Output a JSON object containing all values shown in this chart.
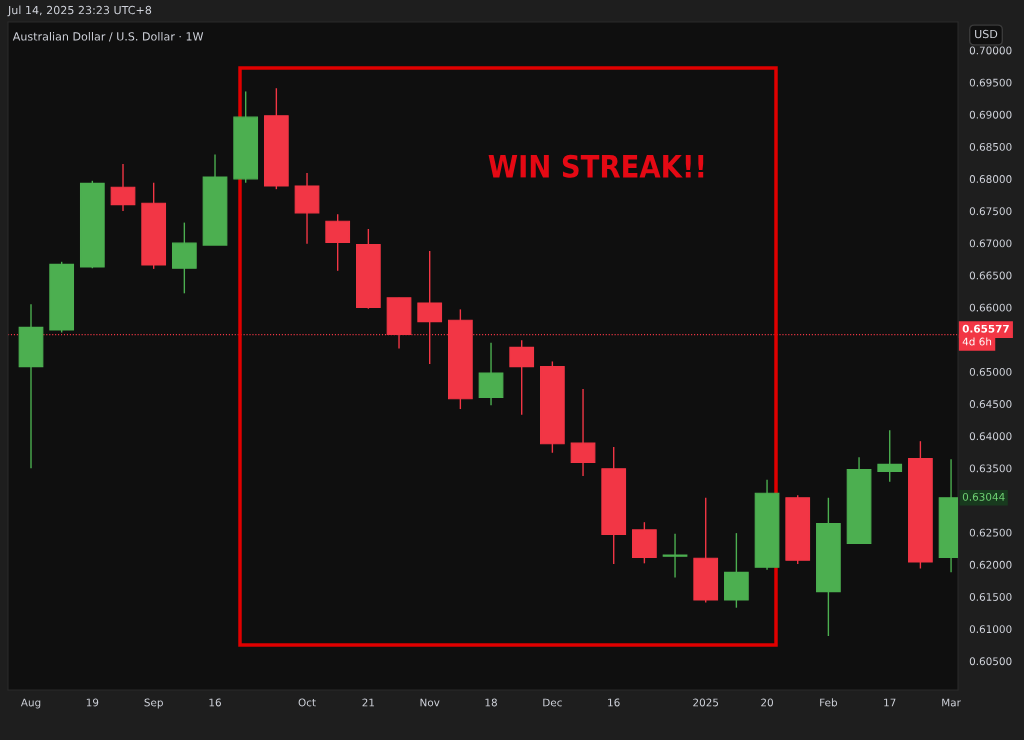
{
  "chart_data": {
    "type": "candlestick",
    "title": "Australian Dollar / U.S. Dollar · 1W",
    "ylabel": "USD",
    "x": [
      "2024-08-05",
      "2024-08-12",
      "2024-08-19",
      "2024-08-26",
      "2024-09-02",
      "2024-09-09",
      "2024-09-16",
      "2024-09-23",
      "2024-09-30",
      "2024-10-07",
      "2024-10-14",
      "2024-10-21",
      "2024-10-28",
      "2024-11-04",
      "2024-11-11",
      "2024-11-18",
      "2024-11-25",
      "2024-12-02",
      "2024-12-09",
      "2024-12-16",
      "2024-12-23",
      "2024-12-30",
      "2025-01-06",
      "2025-01-13",
      "2025-01-20",
      "2025-01-27",
      "2025-02-03",
      "2025-02-10",
      "2025-02-17",
      "2025-02-24",
      "2025-03-03"
    ],
    "ohlc": [
      [
        0.6508,
        0.6605,
        0.635,
        0.6569
      ],
      [
        0.6565,
        0.6671,
        0.6561,
        0.6667
      ],
      [
        0.6663,
        0.6797,
        0.6661,
        0.6793
      ],
      [
        0.6787,
        0.6823,
        0.675,
        0.676
      ],
      [
        0.6762,
        0.6794,
        0.666,
        0.6666
      ],
      [
        0.6661,
        0.6732,
        0.6622,
        0.67
      ],
      [
        0.6697,
        0.6838,
        0.6697,
        0.6803
      ],
      [
        0.68,
        0.6936,
        0.6794,
        0.6896
      ],
      [
        0.6898,
        0.6941,
        0.6784,
        0.6789
      ],
      [
        0.6789,
        0.6809,
        0.6699,
        0.6747
      ],
      [
        0.6734,
        0.6745,
        0.6657,
        0.6701
      ],
      [
        0.6698,
        0.6722,
        0.6598,
        0.66
      ],
      [
        0.6615,
        0.6615,
        0.6536,
        0.6558
      ],
      [
        0.6607,
        0.6688,
        0.6512,
        0.6578
      ],
      [
        0.658,
        0.6597,
        0.6442,
        0.6458
      ],
      [
        0.646,
        0.6545,
        0.6448,
        0.6498
      ],
      [
        0.6538,
        0.6549,
        0.6433,
        0.6508
      ],
      [
        0.6508,
        0.6516,
        0.6374,
        0.6388
      ],
      [
        0.6389,
        0.6473,
        0.6338,
        0.6359
      ],
      [
        0.6349,
        0.6383,
        0.6201,
        0.6247
      ],
      [
        0.6254,
        0.6266,
        0.6202,
        0.6211
      ],
      [
        0.6213,
        0.6248,
        0.618,
        0.6215
      ],
      [
        0.621,
        0.6304,
        0.6141,
        0.6145
      ],
      [
        0.6145,
        0.6249,
        0.6133,
        0.6188
      ],
      [
        0.6196,
        0.6332,
        0.6192,
        0.6311
      ],
      [
        0.6304,
        0.6308,
        0.6201,
        0.6207
      ],
      [
        0.6158,
        0.6304,
        0.6089,
        0.6264
      ],
      [
        0.6233,
        0.6367,
        0.6233,
        0.6348
      ],
      [
        0.6345,
        0.6409,
        0.6329,
        0.6356
      ],
      [
        0.6365,
        0.6392,
        0.6194,
        0.6204
      ],
      [
        0.6211,
        0.6364,
        0.6188,
        0.6304
      ]
    ],
    "colors": [
      "#4caf50",
      "#4caf50",
      "#4caf50",
      "#f23645",
      "#f23645",
      "#4caf50",
      "#4caf50",
      "#4caf50",
      "#f23645",
      "#f23645",
      "#f23645",
      "#f23645",
      "#f23645",
      "#f23645",
      "#f23645",
      "#4caf50",
      "#f23645",
      "#f23645",
      "#f23645",
      "#f23645",
      "#f23645",
      "#4caf50",
      "#f23645",
      "#4caf50",
      "#4caf50",
      "#f23645",
      "#4caf50",
      "#4caf50",
      "#4caf50",
      "#f23645",
      "#4caf50"
    ],
    "xlim": [
      "2024-07-30T18:00",
      "2025-03-04T14:00"
    ],
    "xticks": [
      {
        "value": "2024-08-05",
        "label": "Aug"
      },
      {
        "value": "2024-08-19",
        "label": "19"
      },
      {
        "value": "2024-09-02",
        "label": "Sep"
      },
      {
        "value": "2024-09-16",
        "label": "16"
      },
      {
        "value": "2024-10-07",
        "label": "Oct"
      },
      {
        "value": "2024-10-21",
        "label": "21"
      },
      {
        "value": "2024-11-04",
        "label": "Nov"
      },
      {
        "value": "2024-11-18",
        "label": "18"
      },
      {
        "value": "2024-12-02",
        "label": "Dec"
      },
      {
        "value": "2024-12-16",
        "label": "16"
      },
      {
        "value": "2025-01-06",
        "label": "2025"
      },
      {
        "value": "2025-01-20",
        "label": "20"
      },
      {
        "value": "2025-02-03",
        "label": "Feb"
      },
      {
        "value": "2025-02-17",
        "label": "17"
      },
      {
        "value": "2025-03-03",
        "label": "Mar"
      }
    ],
    "ylim": [
      0.6005,
      0.7044
    ],
    "yticks": [
      {
        "value": 0.605,
        "label": "0.60500"
      },
      {
        "value": 0.61,
        "label": "0.61000"
      },
      {
        "value": 0.615,
        "label": "0.61500"
      },
      {
        "value": 0.62,
        "label": "0.62000"
      },
      {
        "value": 0.625,
        "label": "0.62500"
      },
      {
        "value": 0.635,
        "label": "0.63500"
      },
      {
        "value": 0.64,
        "label": "0.64000"
      },
      {
        "value": 0.645,
        "label": "0.64500"
      },
      {
        "value": 0.65,
        "label": "0.65000"
      },
      {
        "value": 0.66,
        "label": "0.66000"
      },
      {
        "value": 0.665,
        "label": "0.66500"
      },
      {
        "value": 0.67,
        "label": "0.67000"
      },
      {
        "value": 0.675,
        "label": "0.67500"
      },
      {
        "value": 0.68,
        "label": "0.68000"
      },
      {
        "value": 0.685,
        "label": "0.68500"
      },
      {
        "value": 0.69,
        "label": "0.69000"
      },
      {
        "value": 0.695,
        "label": "0.69500"
      },
      {
        "value": 0.7,
        "label": "0.70000"
      }
    ],
    "ref_lines": [
      {
        "axis": "y",
        "value": 0.65577,
        "label": "0.65577",
        "color": "#f23645",
        "line_style": "dotted"
      }
    ],
    "annotations": [
      "Jul 14, 2025 23:23 UTC+8",
      "WIN STREAK!!",
      "4d 6h",
      "0.63044"
    ],
    "grid": false,
    "legend": false
  }
}
